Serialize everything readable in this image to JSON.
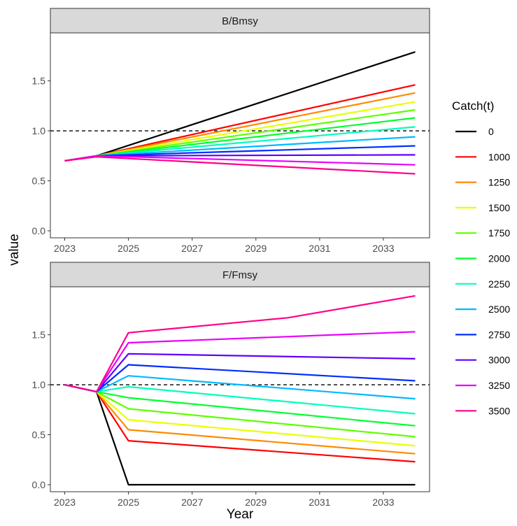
{
  "chart_data": {
    "type": "line",
    "xlabel": "Year",
    "ylabel": "value",
    "xlim": [
      2022.55,
      2034.45
    ],
    "x_ticks": [
      2023,
      2025,
      2027,
      2029,
      2031,
      2033
    ],
    "y_ticks": [
      0.0,
      0.5,
      1.0,
      1.5
    ],
    "y_tick_labels": [
      "0.0",
      "0.5",
      "1.0",
      "1.5"
    ],
    "grid": false,
    "reference_line": 1.0,
    "legend": {
      "title": "Catch(t)",
      "position": "right"
    },
    "series_meta": [
      {
        "name": "0",
        "color": "#000000"
      },
      {
        "name": "1000",
        "color": "#FF0000"
      },
      {
        "name": "1250",
        "color": "#FF8B00"
      },
      {
        "name": "1500",
        "color": "#E8FF00"
      },
      {
        "name": "1750",
        "color": "#5DFF00"
      },
      {
        "name": "2000",
        "color": "#00FF2E"
      },
      {
        "name": "2250",
        "color": "#00FFB9"
      },
      {
        "name": "2500",
        "color": "#00B9FF"
      },
      {
        "name": "2750",
        "color": "#002EFF"
      },
      {
        "name": "3000",
        "color": "#5D00FF"
      },
      {
        "name": "3250",
        "color": "#E800FF"
      },
      {
        "name": "3500",
        "color": "#FF008B"
      }
    ],
    "panels": [
      {
        "title": "B/Bmsy",
        "ylim": [
          -0.07,
          1.98
        ],
        "series": [
          {
            "name": "0",
            "points": [
              [
                2023,
                0.7
              ],
              [
                2024,
                0.75
              ],
              [
                2034,
                1.79
              ]
            ]
          },
          {
            "name": "1000",
            "points": [
              [
                2023,
                0.7
              ],
              [
                2024,
                0.75
              ],
              [
                2034,
                1.46
              ]
            ]
          },
          {
            "name": "1250",
            "points": [
              [
                2023,
                0.7
              ],
              [
                2024,
                0.75
              ],
              [
                2034,
                1.38
              ]
            ]
          },
          {
            "name": "1500",
            "points": [
              [
                2023,
                0.7
              ],
              [
                2024,
                0.75
              ],
              [
                2034,
                1.29
              ]
            ]
          },
          {
            "name": "1750",
            "points": [
              [
                2023,
                0.7
              ],
              [
                2024,
                0.75
              ],
              [
                2034,
                1.21
              ]
            ]
          },
          {
            "name": "2000",
            "points": [
              [
                2023,
                0.7
              ],
              [
                2024,
                0.75
              ],
              [
                2034,
                1.13
              ]
            ]
          },
          {
            "name": "2250",
            "points": [
              [
                2023,
                0.7
              ],
              [
                2024,
                0.75
              ],
              [
                2034,
                1.04
              ]
            ]
          },
          {
            "name": "2500",
            "points": [
              [
                2023,
                0.7
              ],
              [
                2024,
                0.75
              ],
              [
                2034,
                0.94
              ]
            ]
          },
          {
            "name": "2750",
            "points": [
              [
                2023,
                0.7
              ],
              [
                2024,
                0.75
              ],
              [
                2034,
                0.85
              ]
            ]
          },
          {
            "name": "3000",
            "points": [
              [
                2023,
                0.7
              ],
              [
                2024,
                0.75
              ],
              [
                2034,
                0.76
              ]
            ]
          },
          {
            "name": "3250",
            "points": [
              [
                2023,
                0.7
              ],
              [
                2024,
                0.75
              ],
              [
                2034,
                0.66
              ]
            ]
          },
          {
            "name": "3500",
            "points": [
              [
                2023,
                0.7
              ],
              [
                2024,
                0.74
              ],
              [
                2034,
                0.57
              ]
            ]
          }
        ]
      },
      {
        "title": "F/Fmsy",
        "ylim": [
          -0.07,
          1.98
        ],
        "series": [
          {
            "name": "0",
            "points": [
              [
                2023,
                1.0
              ],
              [
                2024,
                0.93
              ],
              [
                2025,
                0.0
              ],
              [
                2034,
                0.0
              ]
            ]
          },
          {
            "name": "1000",
            "points": [
              [
                2023,
                1.0
              ],
              [
                2024,
                0.93
              ],
              [
                2025,
                0.44
              ],
              [
                2034,
                0.23
              ]
            ]
          },
          {
            "name": "1250",
            "points": [
              [
                2023,
                1.0
              ],
              [
                2024,
                0.93
              ],
              [
                2025,
                0.55
              ],
              [
                2034,
                0.31
              ]
            ]
          },
          {
            "name": "1500",
            "points": [
              [
                2023,
                1.0
              ],
              [
                2024,
                0.93
              ],
              [
                2025,
                0.65
              ],
              [
                2034,
                0.39
              ]
            ]
          },
          {
            "name": "1750",
            "points": [
              [
                2023,
                1.0
              ],
              [
                2024,
                0.93
              ],
              [
                2025,
                0.76
              ],
              [
                2034,
                0.48
              ]
            ]
          },
          {
            "name": "2000",
            "points": [
              [
                2023,
                1.0
              ],
              [
                2024,
                0.93
              ],
              [
                2025,
                0.87
              ],
              [
                2034,
                0.59
              ]
            ]
          },
          {
            "name": "2250",
            "points": [
              [
                2023,
                1.0
              ],
              [
                2024,
                0.93
              ],
              [
                2025,
                0.98
              ],
              [
                2034,
                0.71
              ]
            ]
          },
          {
            "name": "2500",
            "points": [
              [
                2023,
                1.0
              ],
              [
                2024,
                0.93
              ],
              [
                2025,
                1.09
              ],
              [
                2034,
                0.86
              ]
            ]
          },
          {
            "name": "2750",
            "points": [
              [
                2023,
                1.0
              ],
              [
                2024,
                0.93
              ],
              [
                2025,
                1.2
              ],
              [
                2034,
                1.04
              ]
            ]
          },
          {
            "name": "3000",
            "points": [
              [
                2023,
                1.0
              ],
              [
                2024,
                0.93
              ],
              [
                2025,
                1.31
              ],
              [
                2034,
                1.26
              ]
            ]
          },
          {
            "name": "3250",
            "points": [
              [
                2023,
                1.0
              ],
              [
                2024,
                0.93
              ],
              [
                2025,
                1.42
              ],
              [
                2034,
                1.53
              ]
            ]
          },
          {
            "name": "3500",
            "points": [
              [
                2023,
                1.0
              ],
              [
                2024,
                0.93
              ],
              [
                2025,
                1.52
              ],
              [
                2030,
                1.67
              ],
              [
                2034,
                1.89
              ]
            ]
          }
        ]
      }
    ]
  }
}
